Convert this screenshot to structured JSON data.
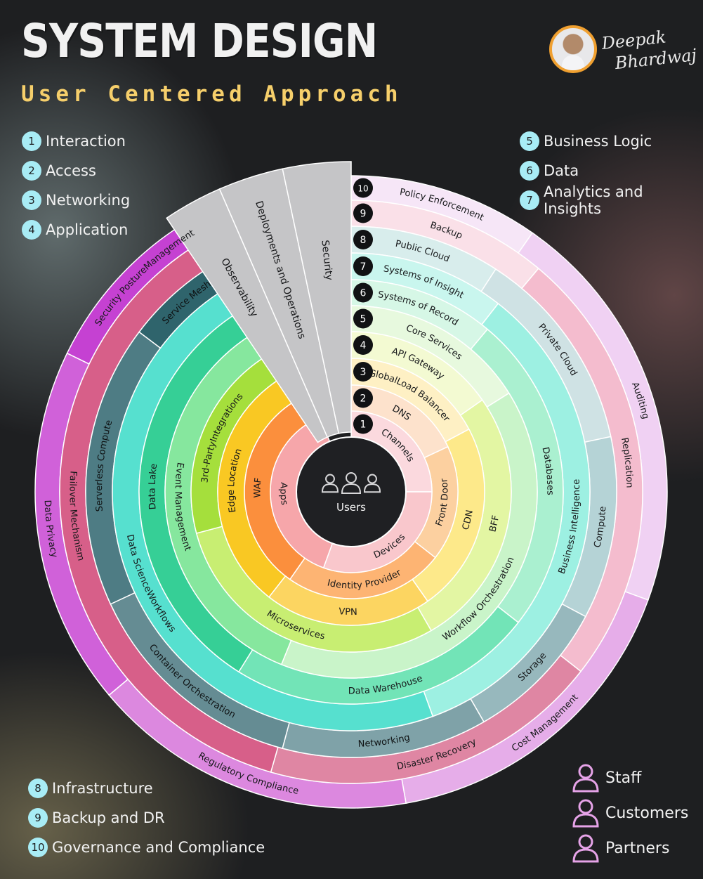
{
  "header": {
    "title": "SYSTEM DESIGN",
    "subtitle": "User Centered Approach"
  },
  "author": {
    "first": "Deepak",
    "last": "Bhardwaj"
  },
  "layers": [
    {
      "n": "1",
      "name": "Interaction"
    },
    {
      "n": "2",
      "name": "Access"
    },
    {
      "n": "3",
      "name": "Networking"
    },
    {
      "n": "4",
      "name": "Application"
    },
    {
      "n": "5",
      "name": "Business Logic"
    },
    {
      "n": "6",
      "name": "Data"
    },
    {
      "n": "7",
      "name": "Analytics and Insights"
    },
    {
      "n": "8",
      "name": "Infrastructure"
    },
    {
      "n": "9",
      "name": "Backup and DR"
    },
    {
      "n": "10",
      "name": "Governance and Compliance"
    }
  ],
  "center": {
    "label": "Users"
  },
  "ring_numbers": [
    "1",
    "2",
    "3",
    "4",
    "5",
    "6",
    "7",
    "8",
    "9",
    "10"
  ],
  "wedge": [
    "Observability",
    "Deployments and Operations",
    "Security"
  ],
  "rings": [
    {
      "segments": [
        {
          "label": "Channels",
          "color": "#fbd9de"
        },
        {
          "label": "Devices",
          "color": "#f9c7cc"
        },
        {
          "label": "Apps",
          "color": "#f6a6aa"
        }
      ]
    },
    {
      "segments": [
        {
          "label": "DNS",
          "color": "#fde2cc"
        },
        {
          "label": "Front Door",
          "color": "#fcd0a0"
        },
        {
          "label": "Identity Provider",
          "color": "#fdb473"
        },
        {
          "label": "WAF",
          "color": "#fb8f3d"
        }
      ]
    },
    {
      "segments": [
        {
          "label": "GlobalLoad Balancer",
          "color": "#fef0c4"
        },
        {
          "label": "CDN",
          "color": "#fde98a"
        },
        {
          "label": "VPN",
          "color": "#fcd561"
        },
        {
          "label": "Edge Location",
          "color": "#f9c823"
        }
      ]
    },
    {
      "segments": [
        {
          "label": "API Gateway",
          "color": "#f3fad2"
        },
        {
          "label": "BFF",
          "color": "#e3f6a3"
        },
        {
          "label": "Microservices",
          "color": "#c8ee72"
        },
        {
          "label": "3rd-PartyIntegrations",
          "color": "#a5df3c"
        }
      ]
    },
    {
      "segments": [
        {
          "label": "Core Services",
          "color": "#e7f9de"
        },
        {
          "label": "Workflow Orchestration",
          "color": "#c9f4c9"
        },
        {
          "label": "Event Management",
          "color": "#86e79e"
        }
      ]
    },
    {
      "segments": [
        {
          "label": "Systems of Record",
          "color": "#d6f7e6"
        },
        {
          "label": "Databases",
          "color": "#aaf0d0"
        },
        {
          "label": "Data Warehouse",
          "color": "#72e4b7"
        },
        {
          "label": "Data Lake",
          "color": "#36cf96"
        }
      ]
    },
    {
      "segments": [
        {
          "label": "Systems of Insight",
          "color": "#c9f6ee"
        },
        {
          "label": "Business Intelligence",
          "color": "#9df0e2"
        },
        {
          "label": "Data ScienceWorkflows",
          "color": "#56e0cf"
        }
      ]
    },
    {
      "segments": [
        {
          "label": "Public Cloud",
          "color": "#d8edec"
        },
        {
          "label": "Private Cloud",
          "color": "#cfe2e4"
        },
        {
          "label": "Compute",
          "color": "#b5d3d6"
        },
        {
          "label": "Storage",
          "color": "#97b8bd"
        },
        {
          "label": "Networking",
          "color": "#7fa2a8"
        },
        {
          "label": "Container Orchestration",
          "color": "#658c93"
        },
        {
          "label": "Serverless Compute",
          "color": "#4e7c84"
        },
        {
          "label": "Service Mesh",
          "color": "#2f646c"
        }
      ]
    },
    {
      "segments": [
        {
          "label": "Backup",
          "color": "#fae0e8"
        },
        {
          "label": "Replication",
          "color": "#f4bcce"
        },
        {
          "label": "Disaster Recovery",
          "color": "#df86a3"
        },
        {
          "label": "Failover Mechanism",
          "color": "#d75f89"
        }
      ]
    },
    {
      "segments": [
        {
          "label": "Policy Enforcement",
          "color": "#f6e6f7"
        },
        {
          "label": "Auditing",
          "color": "#f0d1f3"
        },
        {
          "label": "Cost Management",
          "color": "#e6ade9"
        },
        {
          "label": "Regulatory Compliance",
          "color": "#dc88df"
        },
        {
          "label": "Data Privacy",
          "color": "#d061d9"
        },
        {
          "label": "Security PostureManagement",
          "color": "#c541d2"
        }
      ]
    }
  ],
  "users_key": [
    "Staff",
    "Customers",
    "Partners"
  ],
  "colors": {
    "accent_title": "#f6cf6b",
    "legend_badge": "#a8ecf5",
    "wedge": "#c5c5c7",
    "hub": "#1f2023",
    "person_icon": "#e6a3e8"
  }
}
